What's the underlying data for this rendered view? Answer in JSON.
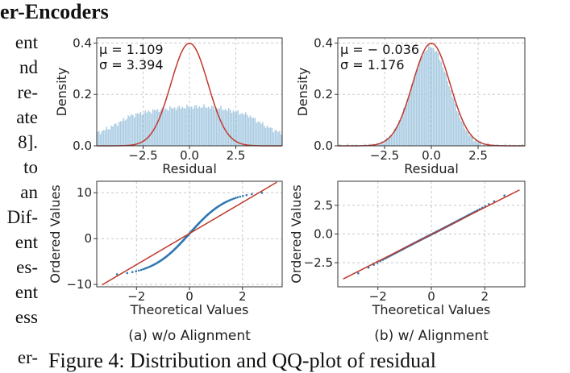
{
  "heading": "er-Encoders",
  "margin_lines": [
    "ent",
    "nd",
    "re-",
    "ate",
    "8].",
    "to",
    "an",
    "Dif-",
    "ent",
    "es-",
    "ent",
    "ess",
    "er-"
  ],
  "caption": "Figure 4:  Distribution and QQ-plot of residual",
  "chart_data": [
    {
      "type": "bar",
      "panel": "a-top",
      "xlabel": "Residual",
      "ylabel": "Density",
      "xticks": [
        "−2.5",
        "0.0",
        "2.5"
      ],
      "yticks": [
        "0.0",
        "0.2",
        "0.4"
      ],
      "xlim": [
        -5.0,
        5.0
      ],
      "ylim": [
        0,
        0.42
      ],
      "stats": [
        "μ = 1.109",
        "σ = 3.394"
      ],
      "hist_shape": {
        "base": 0.09,
        "amp1": 0.04,
        "c1": -1.6,
        "amp2": 0.05,
        "c2": 1.4,
        "w": 1.7
      },
      "normal_fit": {
        "mu": 0.0,
        "sigma": 1.0
      },
      "grid": true
    },
    {
      "type": "bar",
      "panel": "b-top",
      "xlabel": "Residual",
      "ylabel": "Density",
      "xticks": [
        "−2.5",
        "0.0",
        "2.5"
      ],
      "yticks": [
        "0.0",
        "0.2",
        "0.4"
      ],
      "xlim": [
        -5.0,
        5.0
      ],
      "ylim": [
        0,
        0.42
      ],
      "stats": [
        "μ = − 0.036",
        "σ = 1.176"
      ],
      "hist_shape": {
        "mu": -0.036,
        "sigma": 1.0,
        "peak": 0.385
      },
      "normal_fit": {
        "mu": 0.0,
        "sigma": 1.0
      },
      "grid": true
    },
    {
      "type": "scatter",
      "panel": "a-bottom",
      "xlabel": "Theoretical Values",
      "ylabel": "Ordered Values",
      "xticks": [
        "−2",
        "0",
        "2"
      ],
      "yticks": [
        "−10",
        "0",
        "10"
      ],
      "xlim": [
        -3.5,
        3.5
      ],
      "ylim": [
        -10.5,
        12.5
      ],
      "fit_line": {
        "slope": 3.39,
        "intercept": 1.11
      },
      "grid": true
    },
    {
      "type": "scatter",
      "panel": "b-bottom",
      "xlabel": "Theoretical Values",
      "ylabel": "Ordered Values",
      "xticks": [
        "−2",
        "0",
        "2"
      ],
      "yticks": [
        "−2.5",
        "0.0",
        "2.5"
      ],
      "xlim": [
        -3.5,
        3.5
      ],
      "ylim": [
        -4.6,
        4.6
      ],
      "fit_line": {
        "slope": 1.176,
        "intercept": -0.036
      },
      "grid": true
    }
  ],
  "subcaptions": [
    "(a) w/o Alignment",
    "(b) w/ Alignment"
  ],
  "colors": {
    "hist": "#a9cbe2",
    "fit": "#c0392b",
    "points": "#2f78b4",
    "grid": "#c8c8c8"
  }
}
